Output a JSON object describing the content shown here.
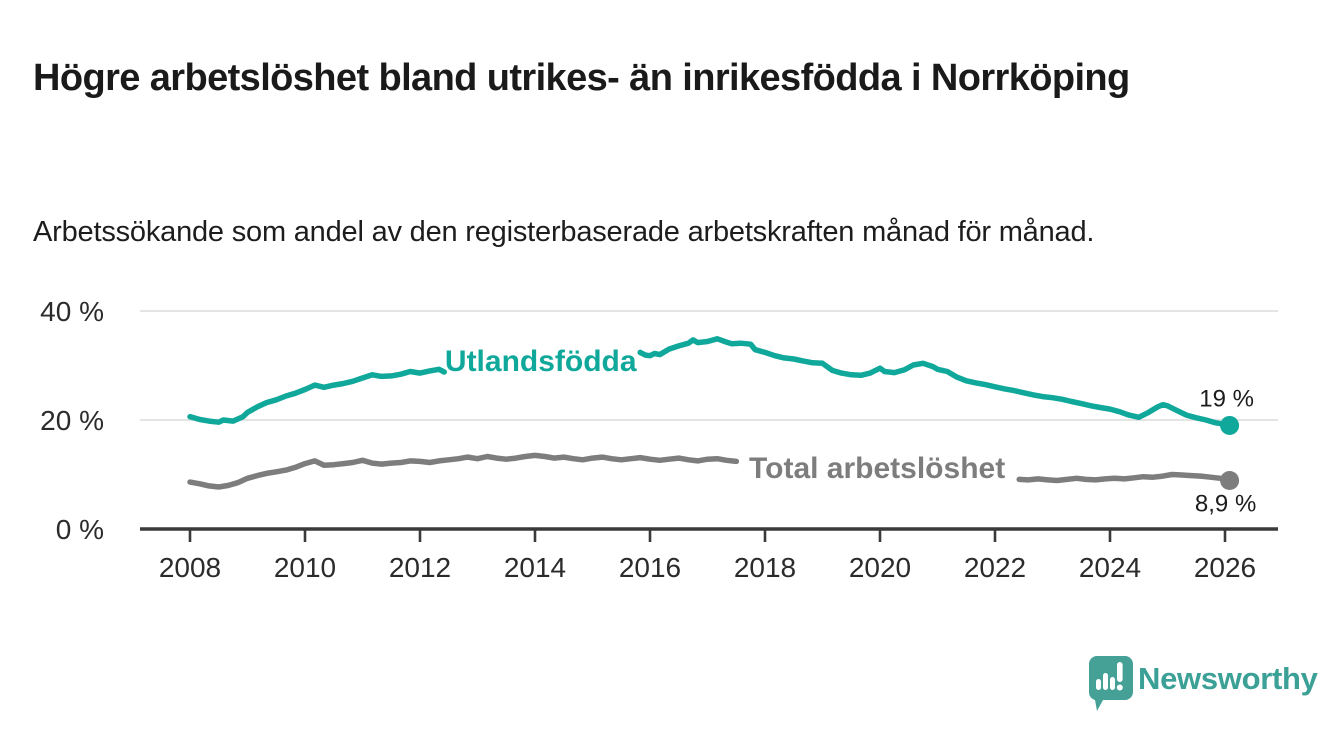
{
  "header": {
    "title": "Högre arbetslöshet bland utrikes- än inrikesfödda i Norrköping",
    "subtitle": "Arbetssökande som andel av den registerbaserade arbetskraften månad för månad."
  },
  "branding": {
    "wordmark": "Newsworthy",
    "logo_color": "#45a096",
    "wordmark_color": "#3ba096"
  },
  "chart_data": {
    "type": "line",
    "unit": "%",
    "grid": "horizontal",
    "x_axis": {
      "ticks": [
        2008,
        2010,
        2012,
        2014,
        2016,
        2018,
        2020,
        2022,
        2024,
        2026
      ],
      "range": [
        2007.1,
        2026.9
      ]
    },
    "y_axis": {
      "ticks": [
        {
          "value": 0,
          "label": "0 %"
        },
        {
          "value": 20,
          "label": "20 %"
        },
        {
          "value": 40,
          "label": "40 %"
        }
      ],
      "range": [
        0,
        40
      ]
    },
    "series": [
      {
        "name": "Utlandsfödda",
        "slug": "utlandsfodda",
        "color": "#10a89b",
        "end_label": "19 %",
        "end_value": 19,
        "label_anchor": {
          "year": 2014.1,
          "value": 29.0
        },
        "segments": [
          [
            [
              2008.0,
              20.6
            ],
            [
              2008.17,
              20.1
            ],
            [
              2008.33,
              19.8
            ],
            [
              2008.5,
              19.6
            ],
            [
              2008.58,
              20.0
            ],
            [
              2008.75,
              19.8
            ],
            [
              2008.92,
              20.6
            ],
            [
              2009.0,
              21.4
            ],
            [
              2009.17,
              22.4
            ],
            [
              2009.33,
              23.2
            ],
            [
              2009.5,
              23.7
            ],
            [
              2009.67,
              24.4
            ],
            [
              2009.83,
              24.9
            ],
            [
              2010.0,
              25.6
            ],
            [
              2010.17,
              26.4
            ],
            [
              2010.33,
              26.0
            ],
            [
              2010.5,
              26.4
            ],
            [
              2010.67,
              26.7
            ],
            [
              2010.83,
              27.1
            ],
            [
              2011.0,
              27.7
            ],
            [
              2011.17,
              28.3
            ],
            [
              2011.33,
              28.0
            ],
            [
              2011.5,
              28.1
            ],
            [
              2011.67,
              28.4
            ],
            [
              2011.83,
              28.9
            ],
            [
              2012.0,
              28.6
            ],
            [
              2012.17,
              29.0
            ],
            [
              2012.33,
              29.3
            ],
            [
              2012.42,
              28.8
            ]
          ],
          [
            [
              2015.83,
              32.4
            ],
            [
              2015.92,
              31.9
            ],
            [
              2016.0,
              31.8
            ],
            [
              2016.08,
              32.2
            ],
            [
              2016.17,
              32.0
            ],
            [
              2016.33,
              33.0
            ],
            [
              2016.5,
              33.6
            ],
            [
              2016.67,
              34.1
            ],
            [
              2016.75,
              34.7
            ],
            [
              2016.83,
              34.2
            ],
            [
              2017.0,
              34.4
            ],
            [
              2017.17,
              34.9
            ],
            [
              2017.33,
              34.3
            ],
            [
              2017.42,
              34.0
            ],
            [
              2017.58,
              34.1
            ],
            [
              2017.75,
              33.9
            ],
            [
              2017.83,
              32.9
            ],
            [
              2018.0,
              32.4
            ],
            [
              2018.17,
              31.8
            ],
            [
              2018.33,
              31.4
            ],
            [
              2018.5,
              31.2
            ],
            [
              2018.67,
              30.8
            ],
            [
              2018.83,
              30.5
            ],
            [
              2019.0,
              30.4
            ],
            [
              2019.17,
              29.1
            ],
            [
              2019.33,
              28.6
            ],
            [
              2019.5,
              28.3
            ],
            [
              2019.67,
              28.2
            ],
            [
              2019.83,
              28.6
            ],
            [
              2020.0,
              29.5
            ],
            [
              2020.08,
              28.9
            ],
            [
              2020.25,
              28.7
            ],
            [
              2020.42,
              29.2
            ],
            [
              2020.58,
              30.1
            ],
            [
              2020.75,
              30.4
            ],
            [
              2020.92,
              29.8
            ],
            [
              2021.0,
              29.3
            ],
            [
              2021.17,
              28.9
            ],
            [
              2021.33,
              27.9
            ],
            [
              2021.5,
              27.2
            ],
            [
              2021.67,
              26.8
            ],
            [
              2021.83,
              26.5
            ],
            [
              2022.0,
              26.1
            ],
            [
              2022.17,
              25.7
            ],
            [
              2022.33,
              25.4
            ],
            [
              2022.5,
              25.0
            ],
            [
              2022.67,
              24.6
            ],
            [
              2022.83,
              24.3
            ],
            [
              2023.0,
              24.1
            ],
            [
              2023.17,
              23.8
            ],
            [
              2023.33,
              23.4
            ],
            [
              2023.5,
              23.0
            ],
            [
              2023.67,
              22.6
            ],
            [
              2023.83,
              22.3
            ],
            [
              2024.0,
              22.0
            ],
            [
              2024.17,
              21.5
            ],
            [
              2024.33,
              20.9
            ],
            [
              2024.5,
              20.5
            ],
            [
              2024.67,
              21.4
            ],
            [
              2024.83,
              22.4
            ],
            [
              2024.92,
              22.8
            ],
            [
              2025.0,
              22.6
            ],
            [
              2025.17,
              21.7
            ],
            [
              2025.33,
              20.9
            ],
            [
              2025.5,
              20.4
            ],
            [
              2025.67,
              20.0
            ],
            [
              2025.83,
              19.5
            ],
            [
              2026.0,
              19.2
            ],
            [
              2026.08,
              19.0
            ]
          ]
        ]
      },
      {
        "name": "Total arbetslöshet",
        "slug": "total-arbetsloshet",
        "color": "#7d7d7d",
        "end_label": "8,9 %",
        "end_value": 8.9,
        "label_anchor": {
          "year": 2019.95,
          "value": 9.4
        },
        "segments": [
          [
            [
              2008.0,
              8.6
            ],
            [
              2008.17,
              8.3
            ],
            [
              2008.33,
              7.9
            ],
            [
              2008.5,
              7.7
            ],
            [
              2008.67,
              8.0
            ],
            [
              2008.83,
              8.5
            ],
            [
              2009.0,
              9.3
            ],
            [
              2009.17,
              9.8
            ],
            [
              2009.33,
              10.2
            ],
            [
              2009.5,
              10.5
            ],
            [
              2009.67,
              10.8
            ],
            [
              2009.83,
              11.3
            ],
            [
              2010.0,
              12.0
            ],
            [
              2010.17,
              12.5
            ],
            [
              2010.33,
              11.7
            ],
            [
              2010.5,
              11.8
            ],
            [
              2010.67,
              12.0
            ],
            [
              2010.83,
              12.2
            ],
            [
              2011.0,
              12.6
            ],
            [
              2011.17,
              12.1
            ],
            [
              2011.33,
              11.9
            ],
            [
              2011.5,
              12.1
            ],
            [
              2011.67,
              12.2
            ],
            [
              2011.83,
              12.5
            ],
            [
              2012.0,
              12.4
            ],
            [
              2012.17,
              12.2
            ],
            [
              2012.33,
              12.5
            ],
            [
              2012.5,
              12.7
            ],
            [
              2012.67,
              12.9
            ],
            [
              2012.83,
              13.2
            ],
            [
              2013.0,
              12.9
            ],
            [
              2013.17,
              13.3
            ],
            [
              2013.33,
              13.0
            ],
            [
              2013.5,
              12.8
            ],
            [
              2013.67,
              13.0
            ],
            [
              2013.83,
              13.3
            ],
            [
              2014.0,
              13.5
            ],
            [
              2014.17,
              13.3
            ],
            [
              2014.33,
              13.0
            ],
            [
              2014.5,
              13.2
            ],
            [
              2014.67,
              12.9
            ],
            [
              2014.83,
              12.7
            ],
            [
              2015.0,
              13.0
            ],
            [
              2015.17,
              13.2
            ],
            [
              2015.33,
              12.9
            ],
            [
              2015.5,
              12.7
            ],
            [
              2015.67,
              12.9
            ],
            [
              2015.83,
              13.1
            ],
            [
              2016.0,
              12.8
            ],
            [
              2016.17,
              12.6
            ],
            [
              2016.33,
              12.8
            ],
            [
              2016.5,
              13.0
            ],
            [
              2016.67,
              12.7
            ],
            [
              2016.83,
              12.5
            ],
            [
              2017.0,
              12.8
            ],
            [
              2017.17,
              12.9
            ],
            [
              2017.33,
              12.6
            ],
            [
              2017.5,
              12.4
            ]
          ],
          [
            [
              2022.42,
              9.1
            ],
            [
              2022.58,
              9.0
            ],
            [
              2022.75,
              9.2
            ],
            [
              2022.92,
              9.0
            ],
            [
              2023.08,
              8.9
            ],
            [
              2023.25,
              9.1
            ],
            [
              2023.42,
              9.3
            ],
            [
              2023.58,
              9.1
            ],
            [
              2023.75,
              9.0
            ],
            [
              2023.92,
              9.2
            ],
            [
              2024.08,
              9.3
            ],
            [
              2024.25,
              9.2
            ],
            [
              2024.42,
              9.4
            ],
            [
              2024.58,
              9.6
            ],
            [
              2024.75,
              9.5
            ],
            [
              2024.92,
              9.7
            ],
            [
              2025.08,
              10.0
            ],
            [
              2025.25,
              9.9
            ],
            [
              2025.42,
              9.8
            ],
            [
              2025.58,
              9.7
            ],
            [
              2025.75,
              9.5
            ],
            [
              2025.92,
              9.3
            ],
            [
              2026.0,
              9.1
            ],
            [
              2026.08,
              8.9
            ]
          ]
        ]
      }
    ],
    "colors": {
      "axis": "#3a3a3a",
      "gridline": "#dcdcdc",
      "tick_text": "#2b2b2b"
    }
  }
}
